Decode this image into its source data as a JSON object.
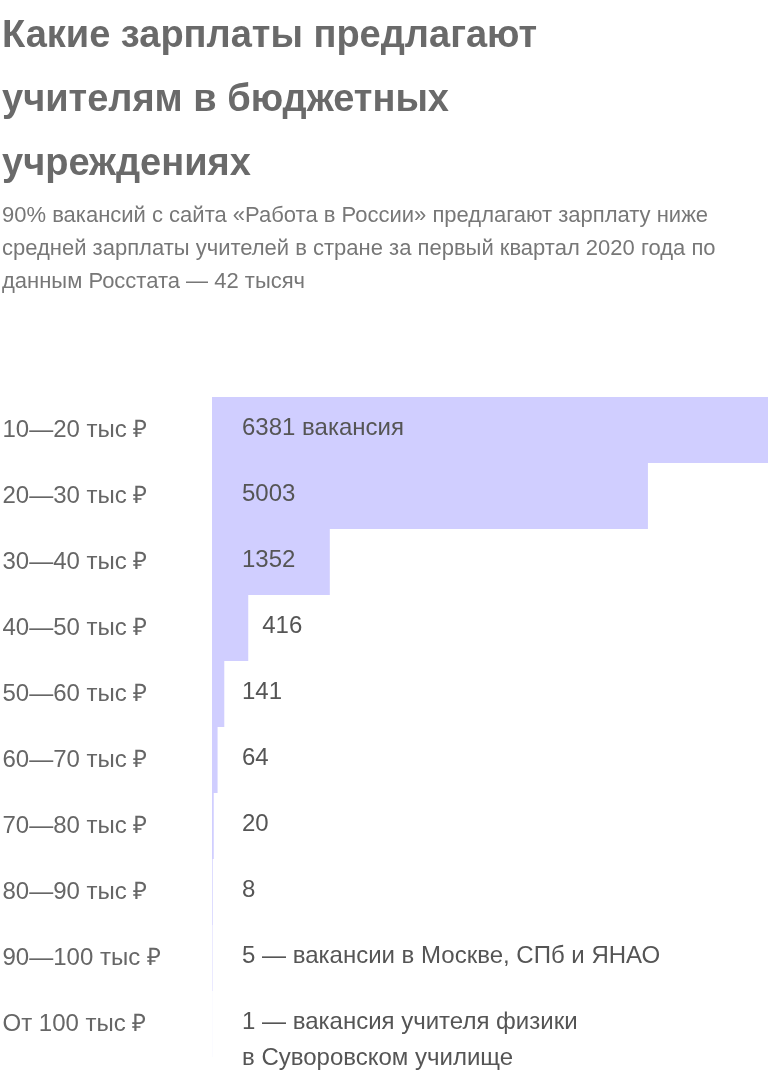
{
  "chart_data": {
    "type": "bar",
    "orientation": "horizontal",
    "title": "Какие зарплаты предлагают учителям в бюджетных учреждениях",
    "subtitle": "90% вакансий с сайта «Работа в России» предлагают зарплату ниже средней зарплаты учителей в стране за первый квартал 2020 года по данным Росстата — 42 тысяч",
    "categories": [
      "10—20 тыс ₽",
      "20—30 тыс ₽",
      "30—40 тыс ₽",
      "40—50 тыс ₽",
      "50—60 тыс ₽",
      "60—70 тыс ₽",
      "70—80 тыс ₽",
      "80—90 тыс ₽",
      "90—100 тыс ₽",
      "От 100 тыс ₽"
    ],
    "values": [
      6381,
      5003,
      1352,
      416,
      141,
      64,
      20,
      8,
      5,
      1
    ],
    "value_labels": [
      "6381 вакансия",
      "5003",
      "1352",
      "416",
      "141",
      "64",
      "20",
      "8",
      "5 — вакансии в Москве, СПб и ЯНАО",
      "1 — вакансия учителя физики\n    в Суворовском училище"
    ],
    "color": "#d0ceff"
  }
}
